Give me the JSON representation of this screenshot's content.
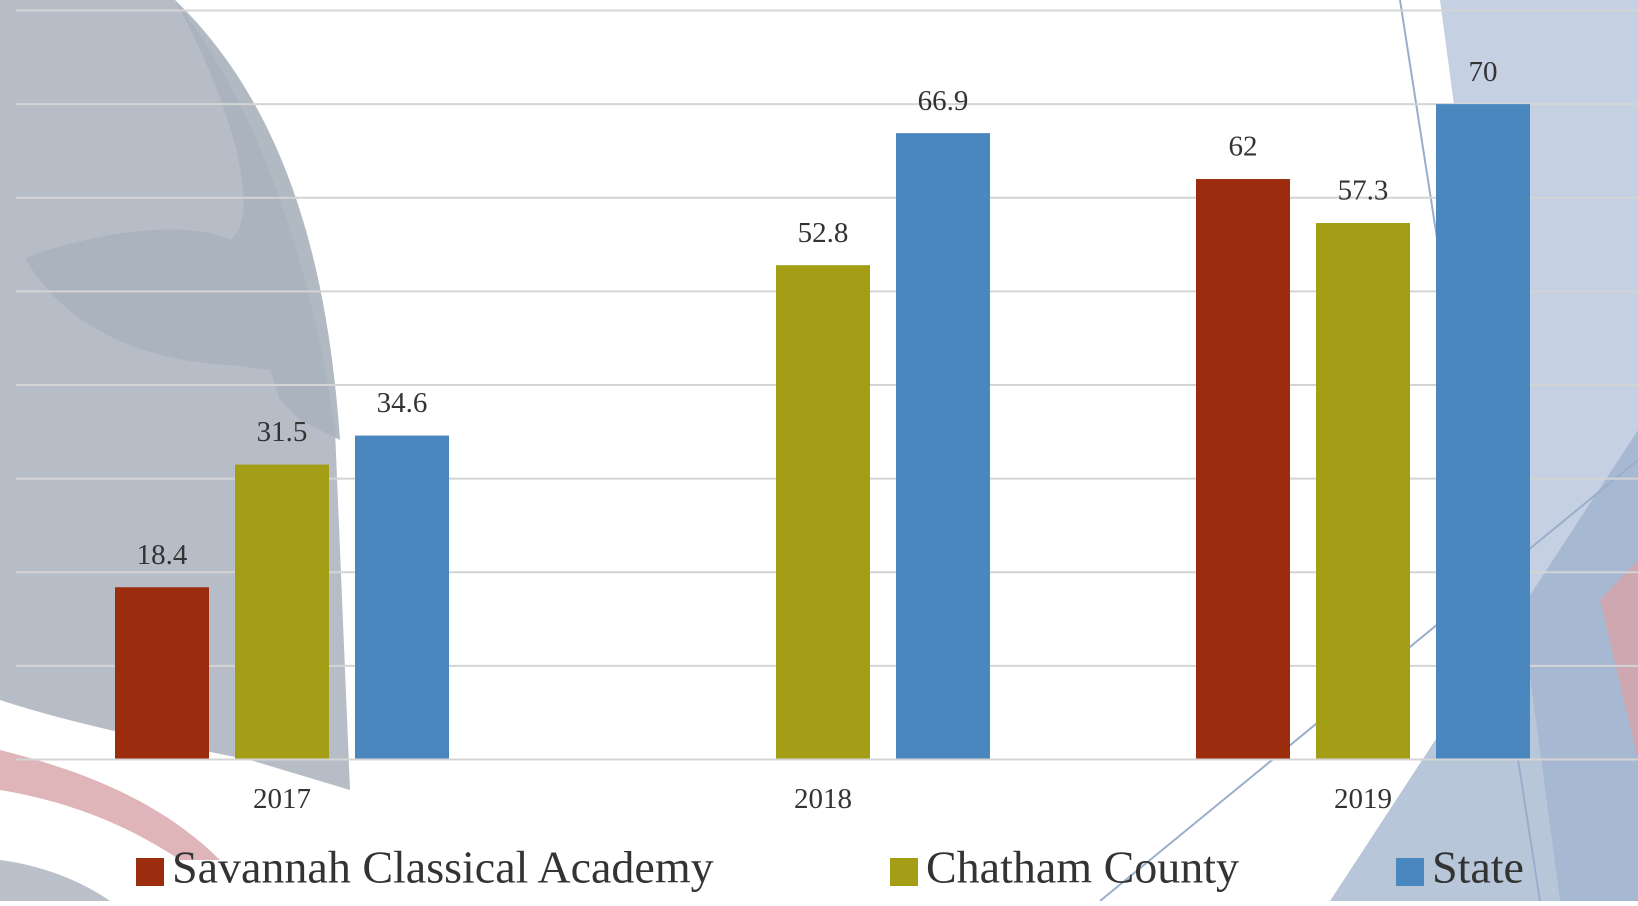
{
  "chart_data": {
    "type": "bar",
    "categories": [
      "2017",
      "2018",
      "2019"
    ],
    "series": [
      {
        "name": "Savannah Classical Academy",
        "color": "#9c2c0e",
        "values": [
          18.4,
          null,
          62
        ]
      },
      {
        "name": "Chatham County",
        "color": "#a49e16",
        "values": [
          31.5,
          52.8,
          57.3
        ]
      },
      {
        "name": "State",
        "color": "#4a87bf",
        "values": [
          34.6,
          66.9,
          70
        ]
      }
    ],
    "ylim": [
      0,
      80
    ],
    "yticks": [
      0,
      10,
      20,
      30,
      40,
      50,
      60,
      70,
      80
    ],
    "grid": true,
    "legend": "bottom"
  }
}
